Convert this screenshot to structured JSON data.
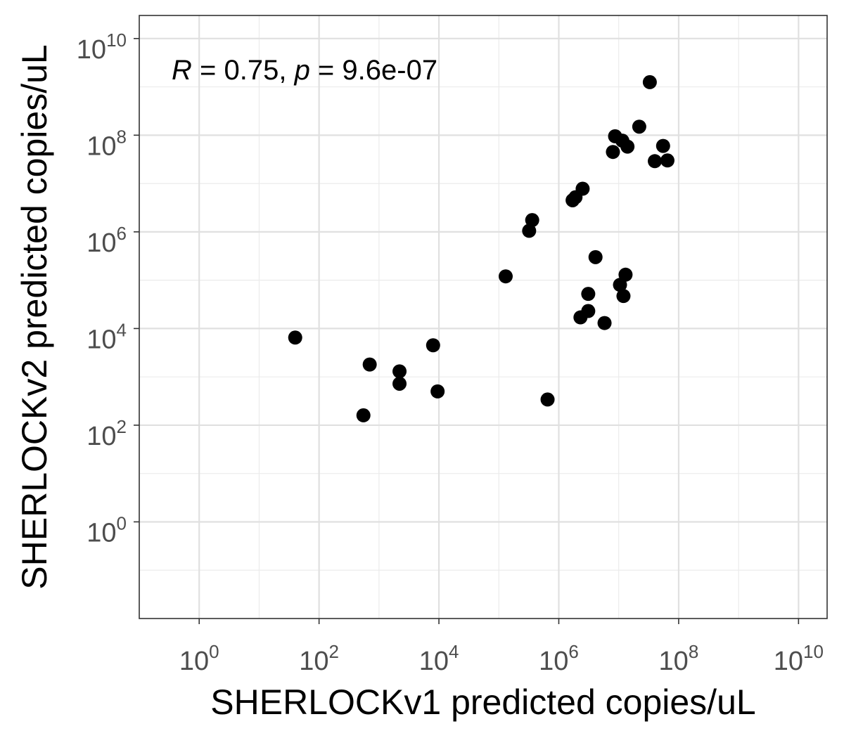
{
  "chart_data": {
    "type": "scatter",
    "xlabel": "SHERLOCKv1 predicted copies/uL",
    "ylabel": "SHERLOCKv2 predicted copies/uL",
    "xscale": "log10",
    "yscale": "log10",
    "xlim": [
      0.1,
      30000000000
    ],
    "ylim": [
      0.01,
      30000000000
    ],
    "grid": true,
    "x_ticks": [
      {
        "value": 1,
        "base": "10",
        "exp": "0"
      },
      {
        "value": 100,
        "base": "10",
        "exp": "2"
      },
      {
        "value": 10000,
        "base": "10",
        "exp": "4"
      },
      {
        "value": 1000000,
        "base": "10",
        "exp": "6"
      },
      {
        "value": 100000000,
        "base": "10",
        "exp": "8"
      },
      {
        "value": 10000000000,
        "base": "10",
        "exp": "10"
      }
    ],
    "y_ticks": [
      {
        "value": 1,
        "base": "10",
        "exp": "0"
      },
      {
        "value": 100,
        "base": "10",
        "exp": "2"
      },
      {
        "value": 10000,
        "base": "10",
        "exp": "4"
      },
      {
        "value": 1000000,
        "base": "10",
        "exp": "6"
      },
      {
        "value": 100000000,
        "base": "10",
        "exp": "8"
      },
      {
        "value": 10000000000,
        "base": "10",
        "exp": "10"
      }
    ],
    "annotation": {
      "r_symbol": "R",
      "r_text": " = 0.75, ",
      "p_symbol": "p",
      "p_text": " = 9.6e-07"
    },
    "point_color": "#000000",
    "points": [
      {
        "x": 40,
        "y": 6500
      },
      {
        "x": 550,
        "y": 160
      },
      {
        "x": 700,
        "y": 1800
      },
      {
        "x": 2200,
        "y": 1300
      },
      {
        "x": 2200,
        "y": 720
      },
      {
        "x": 8000,
        "y": 4500
      },
      {
        "x": 9500,
        "y": 500
      },
      {
        "x": 130000,
        "y": 120000
      },
      {
        "x": 320000,
        "y": 1050000
      },
      {
        "x": 360000,
        "y": 1750000
      },
      {
        "x": 650000,
        "y": 340
      },
      {
        "x": 1700000,
        "y": 4500000
      },
      {
        "x": 1900000,
        "y": 5200000
      },
      {
        "x": 2500000,
        "y": 7800000
      },
      {
        "x": 2300000,
        "y": 17000
      },
      {
        "x": 3100000,
        "y": 23000
      },
      {
        "x": 3100000,
        "y": 52000
      },
      {
        "x": 4100000,
        "y": 300000
      },
      {
        "x": 5800000,
        "y": 13000
      },
      {
        "x": 8000000,
        "y": 45000000
      },
      {
        "x": 8700000,
        "y": 95000000
      },
      {
        "x": 10500000,
        "y": 80000
      },
      {
        "x": 11500000,
        "y": 77000000
      },
      {
        "x": 12000000,
        "y": 47000
      },
      {
        "x": 13000000,
        "y": 130000
      },
      {
        "x": 14000000,
        "y": 58000000
      },
      {
        "x": 22000000,
        "y": 150000000
      },
      {
        "x": 33000000,
        "y": 1250000000
      },
      {
        "x": 40000000,
        "y": 29000000
      },
      {
        "x": 55000000,
        "y": 60000000
      },
      {
        "x": 65000000,
        "y": 30000000
      }
    ]
  }
}
